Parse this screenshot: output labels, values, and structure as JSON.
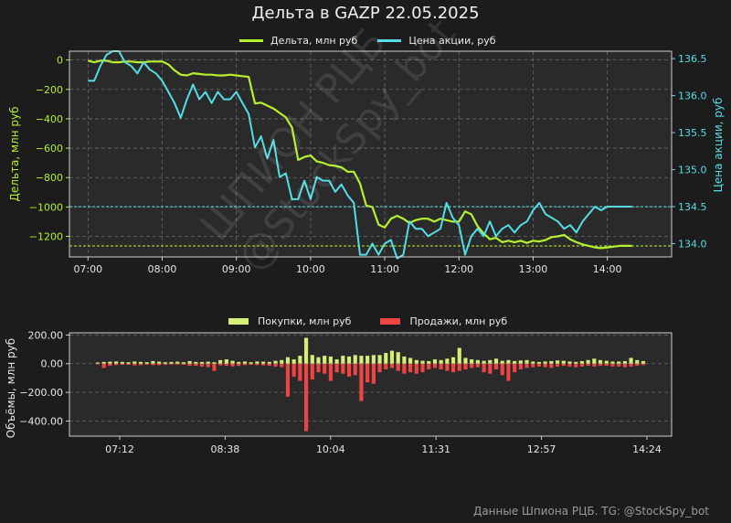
{
  "title": "Дельта в GAZP 22.05.2025",
  "footer": "Данные Шпиона РЦБ. TG: @StockSpy_bot",
  "watermark": [
    "ШПИОН РЦБ",
    "@StockSpy_bot"
  ],
  "colors": {
    "background": "#1c1c1c",
    "plot_bg": "#2a2a2a",
    "delta": "#b5f030",
    "price": "#55dde6",
    "buys": "#d4ee78",
    "sells": "#ee4444",
    "grid": "#6a6a6a",
    "frame": "#cfcfcf"
  },
  "chart_data": [
    {
      "type": "line",
      "x_axis": {
        "ticks": [
          "07:00",
          "08:00",
          "09:00",
          "10:00",
          "11:00",
          "12:00",
          "13:00",
          "14:00"
        ],
        "range": [
          "06:45",
          "14:52"
        ]
      },
      "y_left": {
        "label": "Дельта, млн руб",
        "ticks": [
          "0",
          "−200",
          "−400",
          "−600",
          "−800",
          "−1000",
          "−1200"
        ],
        "range": [
          -1340,
          60
        ]
      },
      "y_right": {
        "label": "Цена акции, руб",
        "ticks": [
          "136.5",
          "136.0",
          "135.5",
          "135.0",
          "134.5",
          "134.0"
        ],
        "range": [
          133.82,
          136.6
        ]
      },
      "legend": "top-center",
      "grid": true,
      "series": [
        {
          "name": "Дельта, млн руб",
          "axis": "left",
          "times": [
            "07:00",
            "07:05",
            "07:10",
            "07:15",
            "07:20",
            "07:25",
            "07:30",
            "07:35",
            "07:40",
            "07:45",
            "07:50",
            "07:55",
            "08:00",
            "08:05",
            "08:10",
            "08:15",
            "08:20",
            "08:25",
            "08:30",
            "08:35",
            "08:40",
            "08:45",
            "08:50",
            "08:55",
            "09:00",
            "09:05",
            "09:10",
            "09:15",
            "09:20",
            "09:25",
            "09:30",
            "09:35",
            "09:40",
            "09:45",
            "09:50",
            "09:55",
            "10:00",
            "10:05",
            "10:10",
            "10:15",
            "10:20",
            "10:25",
            "10:30",
            "10:35",
            "10:40",
            "10:45",
            "10:50",
            "10:55",
            "11:00",
            "11:05",
            "11:10",
            "11:15",
            "11:20",
            "11:25",
            "11:30",
            "11:35",
            "11:40",
            "11:45",
            "11:50",
            "11:55",
            "12:00",
            "12:05",
            "12:10",
            "12:15",
            "12:20",
            "12:25",
            "12:30",
            "12:35",
            "12:40",
            "12:45",
            "12:50",
            "12:55",
            "13:00",
            "13:05",
            "13:10",
            "13:15",
            "13:20",
            "13:25",
            "13:30",
            "13:35",
            "13:40",
            "13:45",
            "13:50",
            "13:55",
            "14:00",
            "14:05",
            "14:10",
            "14:15",
            "14:20"
          ],
          "values": [
            -5,
            -15,
            -5,
            -5,
            -15,
            -15,
            -10,
            -10,
            -15,
            -15,
            -10,
            -10,
            -10,
            -30,
            -70,
            -100,
            -105,
            -90,
            -95,
            -100,
            -100,
            -105,
            -105,
            -100,
            -105,
            -110,
            -115,
            -295,
            -290,
            -310,
            -330,
            -360,
            -390,
            -460,
            -680,
            -660,
            -650,
            -690,
            -700,
            -715,
            -720,
            -730,
            -760,
            -760,
            -840,
            -990,
            -1000,
            -1120,
            -1140,
            -1080,
            -1060,
            -1080,
            -1110,
            -1090,
            -1080,
            -1080,
            -1100,
            -1080,
            -1090,
            -1100,
            -1100,
            -1030,
            -1050,
            -1130,
            -1180,
            -1220,
            -1210,
            -1240,
            -1230,
            -1240,
            -1230,
            -1245,
            -1230,
            -1235,
            -1225,
            -1205,
            -1200,
            -1190,
            -1220,
            -1240,
            -1255,
            -1265,
            -1275,
            -1280,
            -1275,
            -1270,
            -1265,
            -1265,
            -1265
          ]
        },
        {
          "name": "Цена акции, руб",
          "axis": "right",
          "times": [
            "07:00",
            "07:05",
            "07:10",
            "07:15",
            "07:20",
            "07:25",
            "07:30",
            "07:35",
            "07:40",
            "07:45",
            "07:50",
            "07:55",
            "08:00",
            "08:05",
            "08:10",
            "08:15",
            "08:20",
            "08:25",
            "08:30",
            "08:35",
            "08:40",
            "08:45",
            "08:50",
            "08:55",
            "09:00",
            "09:05",
            "09:10",
            "09:15",
            "09:20",
            "09:25",
            "09:30",
            "09:35",
            "09:40",
            "09:45",
            "09:50",
            "09:55",
            "10:00",
            "10:05",
            "10:10",
            "10:15",
            "10:20",
            "10:25",
            "10:30",
            "10:35",
            "10:40",
            "10:45",
            "10:50",
            "10:55",
            "11:00",
            "11:05",
            "11:10",
            "11:15",
            "11:20",
            "11:25",
            "11:30",
            "11:35",
            "11:40",
            "11:45",
            "11:50",
            "11:55",
            "12:00",
            "12:05",
            "12:10",
            "12:15",
            "12:20",
            "12:25",
            "12:30",
            "12:35",
            "12:40",
            "12:45",
            "12:50",
            "12:55",
            "13:00",
            "13:05",
            "13:10",
            "13:15",
            "13:20",
            "13:25",
            "13:30",
            "13:35",
            "13:40",
            "13:45",
            "13:50",
            "13:55",
            "14:00",
            "14:05",
            "14:10",
            "14:15",
            "14:20"
          ],
          "values": [
            136.2,
            136.2,
            136.4,
            136.55,
            136.6,
            136.6,
            136.45,
            136.4,
            136.3,
            136.45,
            136.35,
            136.3,
            136.2,
            136.05,
            135.9,
            135.7,
            135.95,
            136.15,
            135.95,
            136.05,
            135.9,
            136.05,
            135.95,
            135.95,
            136.05,
            135.9,
            135.75,
            135.3,
            135.45,
            135.15,
            135.4,
            134.9,
            134.95,
            134.6,
            134.6,
            134.85,
            134.6,
            134.9,
            134.85,
            134.85,
            134.7,
            134.8,
            134.65,
            134.55,
            133.85,
            133.85,
            134.0,
            133.85,
            134.0,
            134.05,
            133.8,
            133.85,
            134.3,
            134.2,
            134.2,
            134.1,
            134.15,
            134.2,
            134.55,
            134.35,
            134.25,
            133.85,
            134.1,
            134.2,
            134.1,
            134.3,
            134.1,
            134.2,
            134.25,
            134.15,
            134.25,
            134.3,
            134.45,
            134.55,
            134.4,
            134.35,
            134.3,
            134.2,
            134.25,
            134.15,
            134.3,
            134.4,
            134.5,
            134.45,
            134.5,
            134.5,
            134.5,
            134.5,
            134.5
          ]
        }
      ],
      "reference_lines": [
        {
          "axis": "left",
          "value": -1265,
          "color": "#b5f030"
        },
        {
          "axis": "right",
          "value": 134.5,
          "color": "#55dde6"
        }
      ]
    },
    {
      "type": "bar",
      "x_axis": {
        "ticks": [
          "07:12",
          "08:38",
          "10:04",
          "11:31",
          "12:57",
          "14:24"
        ]
      },
      "y_axis": {
        "label": "Объёмы, млн руб",
        "ticks": [
          "200.00",
          "0.00",
          "−200.00",
          "−400.00"
        ],
        "range": [
          -505,
          215
        ]
      },
      "legend": "top-center",
      "grid": true,
      "series": [
        {
          "name": "Покупки, млн руб",
          "values": [
            8,
            12,
            14,
            15,
            12,
            10,
            15,
            12,
            10,
            18,
            14,
            10,
            12,
            14,
            10,
            18,
            12,
            12,
            14,
            10,
            25,
            30,
            20,
            12,
            15,
            10,
            15,
            14,
            12,
            20,
            25,
            45,
            30,
            55,
            180,
            60,
            45,
            55,
            50,
            30,
            55,
            50,
            60,
            55,
            55,
            60,
            60,
            75,
            90,
            80,
            50,
            40,
            25,
            20,
            18,
            30,
            25,
            35,
            45,
            110,
            40,
            30,
            25,
            20,
            25,
            35,
            20,
            25,
            18,
            22,
            25,
            15,
            12,
            15,
            18,
            22,
            20,
            15,
            12,
            18,
            25,
            35,
            25,
            20,
            15,
            15,
            18,
            40,
            25,
            18
          ]
        },
        {
          "name": "Продажи, млн руб",
          "values": [
            -5,
            -30,
            -15,
            -10,
            -8,
            -8,
            -12,
            -10,
            -8,
            -10,
            -10,
            -8,
            -6,
            -6,
            -8,
            -15,
            -15,
            -20,
            -25,
            -50,
            -12,
            -15,
            -20,
            -15,
            -10,
            -8,
            -10,
            -12,
            -15,
            -20,
            -25,
            -230,
            -90,
            -120,
            -470,
            -110,
            -60,
            -70,
            -120,
            -60,
            -70,
            -90,
            -80,
            -260,
            -130,
            -140,
            -60,
            -40,
            -30,
            -50,
            -70,
            -60,
            -70,
            -60,
            -40,
            -30,
            -40,
            -50,
            -60,
            -50,
            -40,
            -30,
            -25,
            -60,
            -70,
            -40,
            -80,
            -120,
            -60,
            -40,
            -30,
            -25,
            -20,
            -25,
            -30,
            -20,
            -15,
            -20,
            -25,
            -20,
            -15,
            -20,
            -15,
            -15,
            -20,
            -20,
            -25,
            -20,
            -15,
            -10
          ]
        }
      ]
    }
  ]
}
